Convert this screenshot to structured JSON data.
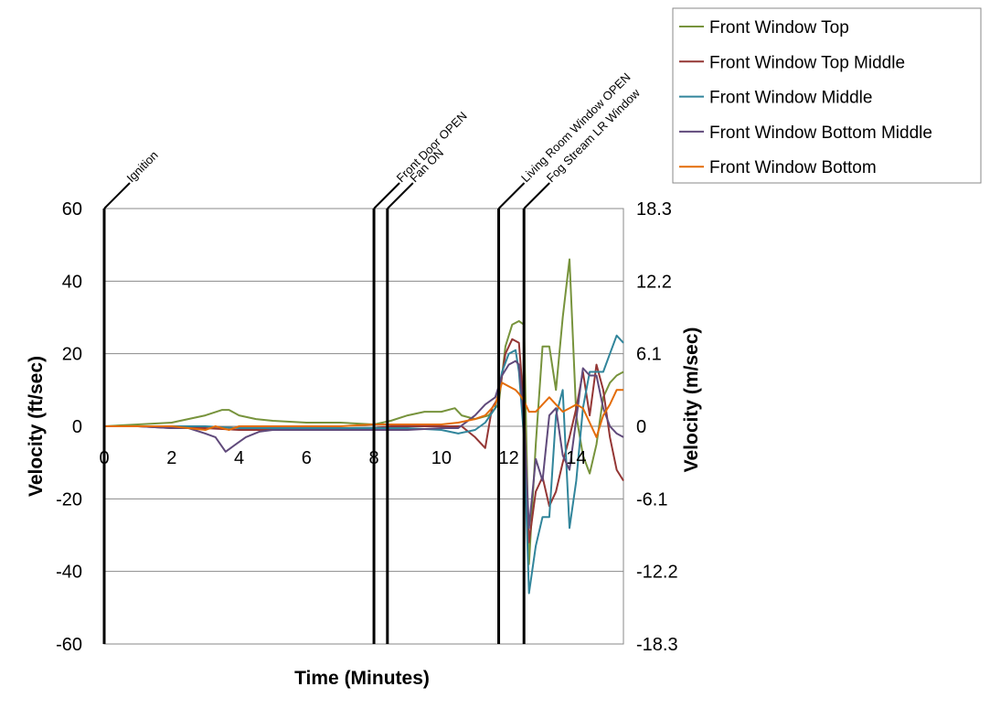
{
  "chart_data": {
    "type": "line",
    "xlabel": "Time (Minutes)",
    "ylabel": "Velocity (ft/sec)",
    "y2label": "Velocity (m/sec)",
    "xlim": [
      0,
      15.4
    ],
    "ylim": [
      -60,
      60
    ],
    "xticks": [
      "0",
      "2",
      "4",
      "6",
      "8",
      "10",
      "12",
      "14"
    ],
    "xtick_values": [
      0,
      2,
      4,
      6,
      8,
      10,
      12,
      14
    ],
    "yticks": [
      "-60",
      "-40",
      "-20",
      "0",
      "20",
      "40",
      "60"
    ],
    "ytick_values": [
      -60,
      -40,
      -20,
      0,
      20,
      40,
      60
    ],
    "y2ticks": [
      "-18.3",
      "-12.2",
      "-6.1",
      "0",
      "6.1",
      "12.2",
      "18.3"
    ],
    "grid": "horizontal",
    "legend_position": "top-right",
    "events": [
      {
        "label": "Ignition",
        "x": 0
      },
      {
        "label": "Front Door OPEN",
        "x": 8.0
      },
      {
        "label": "Fan ON",
        "x": 8.4
      },
      {
        "label": "Living Room Window OPEN",
        "x": 11.7
      },
      {
        "label": "Fog Stream LR Window",
        "x": 12.45
      }
    ],
    "series": [
      {
        "name": "Front Window Top",
        "color": "#77933c",
        "x": [
          0,
          1,
          2,
          3,
          3.5,
          3.7,
          4,
          4.5,
          5,
          6,
          7,
          8,
          8.5,
          9,
          9.5,
          10,
          10.4,
          10.6,
          11,
          11.4,
          11.7,
          11.9,
          12.1,
          12.3,
          12.45,
          12.6,
          12.8,
          13.0,
          13.2,
          13.4,
          13.6,
          13.8,
          14.0,
          14.2,
          14.4,
          14.6,
          14.8,
          15.0,
          15.2,
          15.4
        ],
        "y": [
          0,
          0.5,
          1,
          3,
          4.5,
          4.5,
          3,
          2,
          1.5,
          1,
          1,
          0.5,
          1.5,
          3,
          4,
          4,
          5,
          3,
          2,
          3,
          6,
          22,
          28,
          29,
          28,
          -38,
          -5,
          22,
          22,
          10,
          30,
          46,
          3,
          -8,
          -13,
          -5,
          8,
          12,
          14,
          15
        ]
      },
      {
        "name": "Front Window Top Middle",
        "color": "#943634",
        "x": [
          0,
          1,
          2,
          3,
          4,
          5,
          6,
          7,
          8,
          8.5,
          9,
          10,
          10.6,
          11,
          11.3,
          11.5,
          11.7,
          11.9,
          12.1,
          12.3,
          12.45,
          12.6,
          12.8,
          13.0,
          13.2,
          13.4,
          13.6,
          13.8,
          14.0,
          14.2,
          14.4,
          14.6,
          14.8,
          15.0,
          15.2,
          15.4
        ],
        "y": [
          0,
          0,
          -0.5,
          -0.5,
          -1,
          -1,
          -1,
          -1,
          -0.5,
          0,
          0,
          0,
          0,
          -3,
          -6,
          5,
          8,
          20,
          24,
          23,
          5,
          -32,
          -18,
          -14,
          -22,
          -18,
          -10,
          -3,
          5,
          15,
          3,
          17,
          10,
          -3,
          -12,
          -15
        ]
      },
      {
        "name": "Front Window Middle",
        "color": "#31859b",
        "x": [
          0,
          1,
          2,
          3,
          4,
          5,
          6,
          7,
          8,
          9,
          10,
          10.5,
          11,
          11.3,
          11.6,
          11.8,
          12.0,
          12.2,
          12.3,
          12.45,
          12.6,
          12.8,
          13.0,
          13.2,
          13.4,
          13.6,
          13.8,
          14.0,
          14.2,
          14.4,
          14.6,
          14.8,
          15.0,
          15.2,
          15.4
        ],
        "y": [
          0,
          0,
          0,
          0,
          -0.5,
          -0.5,
          -0.5,
          -0.5,
          -0.5,
          -0.5,
          -1,
          -2,
          -1,
          1,
          5,
          15,
          20,
          21,
          15,
          -3,
          -46,
          -33,
          -25,
          -25,
          3,
          10,
          -28,
          -15,
          5,
          15,
          15,
          15,
          20,
          25,
          23
        ]
      },
      {
        "name": "Front Window Bottom Middle",
        "color": "#604a7b",
        "x": [
          0,
          1,
          2,
          2.5,
          3,
          3.3,
          3.6,
          3.9,
          4.2,
          4.6,
          5,
          6,
          7,
          8,
          9,
          10,
          10.5,
          11,
          11.3,
          11.6,
          11.8,
          12.0,
          12.2,
          12.3,
          12.45,
          12.6,
          12.8,
          13.0,
          13.2,
          13.4,
          13.6,
          13.8,
          14.0,
          14.2,
          14.4,
          14.6,
          14.8,
          15.0,
          15.2,
          15.4
        ],
        "y": [
          0,
          0,
          -0.5,
          -0.5,
          -2,
          -3,
          -7,
          -5,
          -3,
          -1.5,
          -1,
          -1,
          -1,
          -1,
          -1,
          -0.5,
          -0.5,
          3,
          6,
          8,
          14,
          17,
          18,
          17,
          2,
          -28,
          -9,
          -15,
          3,
          5,
          -8,
          -12,
          2,
          16,
          14,
          14,
          5,
          0,
          -2,
          -3
        ]
      },
      {
        "name": "Front Window Bottom",
        "color": "#e36c09",
        "x": [
          0,
          1,
          2,
          2.5,
          3,
          3.3,
          3.7,
          4,
          5,
          6,
          7,
          8,
          8.5,
          9,
          10,
          10.5,
          11,
          11.3,
          11.6,
          11.8,
          12.0,
          12.2,
          12.3,
          12.45,
          12.6,
          12.8,
          13.0,
          13.2,
          13.4,
          13.6,
          13.8,
          14.0,
          14.2,
          14.4,
          14.6,
          14.8,
          15.0,
          15.2,
          15.4
        ],
        "y": [
          0,
          0,
          0,
          -0.5,
          -1,
          0,
          -1,
          0,
          0,
          0,
          0,
          0.5,
          0.5,
          0.5,
          0.5,
          1,
          2,
          3,
          6,
          12,
          11,
          10,
          9,
          7,
          4,
          4,
          6,
          8,
          6,
          4,
          5,
          6,
          5,
          1,
          -3,
          3,
          6,
          10,
          10
        ]
      }
    ]
  }
}
